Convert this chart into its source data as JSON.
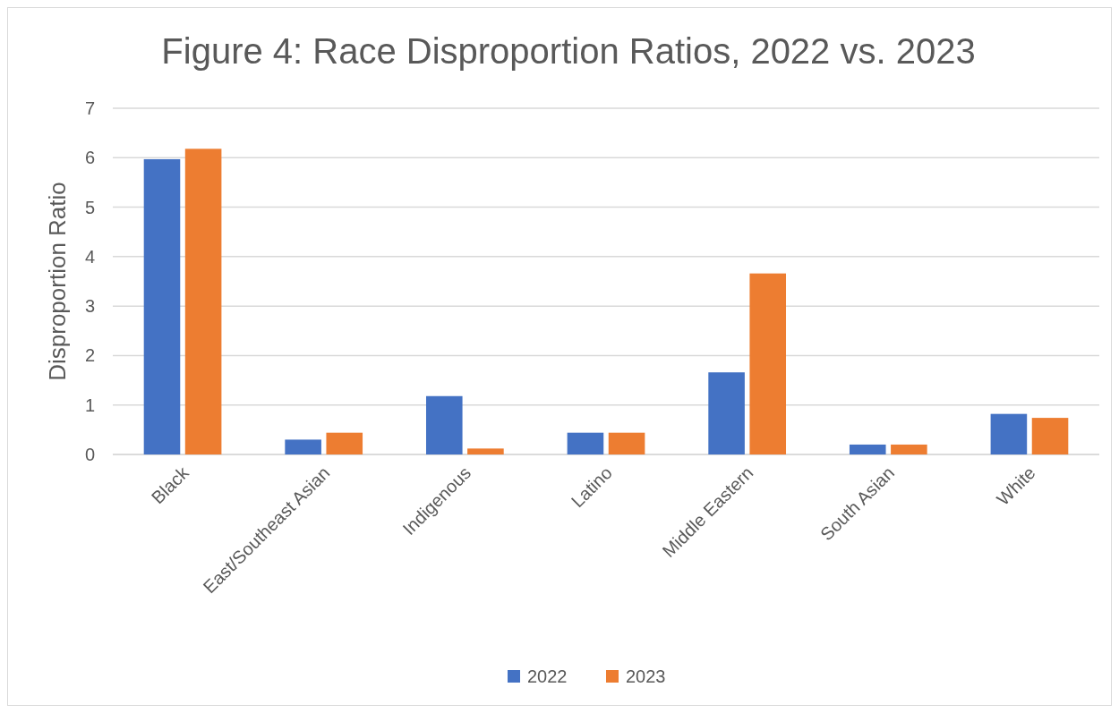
{
  "chart_data": {
    "type": "bar",
    "title": "Figure 4: Race Disproportion Ratios, 2022 vs. 2023",
    "ylabel": "Disproportion Ratio",
    "categories": [
      "Black",
      "East/Southeast Asian",
      "Indigenous",
      "Latino",
      "Middle Eastern",
      "South Asian",
      "White"
    ],
    "series": [
      {
        "name": "2022",
        "color": "#4472c4",
        "values": [
          5.97,
          0.3,
          1.18,
          0.44,
          1.66,
          0.2,
          0.82
        ]
      },
      {
        "name": "2023",
        "color": "#ed7d31",
        "values": [
          6.18,
          0.44,
          0.12,
          0.44,
          3.66,
          0.2,
          0.74
        ]
      }
    ],
    "ylim": [
      0,
      7
    ],
    "yticks": [
      0,
      1,
      2,
      3,
      4,
      5,
      6,
      7
    ],
    "grid": "y",
    "legend": "bottom"
  }
}
